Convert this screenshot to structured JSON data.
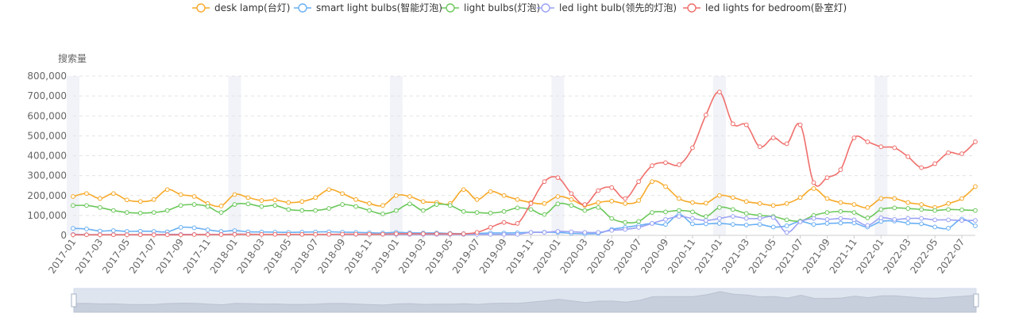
{
  "chart_data": {
    "type": "line",
    "title": "",
    "xlabel": "",
    "ylabel": "搜索量",
    "ylim": [
      0,
      800000
    ],
    "yticks": [
      "0",
      "100,000",
      "200,000",
      "300,000",
      "400,000",
      "500,000",
      "600,000",
      "700,000",
      "800,000"
    ],
    "legend_position": "top-center",
    "grid": "horizontal-dashed",
    "x": [
      "2017-01",
      "2017-02",
      "2017-03",
      "2017-04",
      "2017-05",
      "2017-06",
      "2017-07",
      "2017-08",
      "2017-09",
      "2017-10",
      "2017-11",
      "2017-12",
      "2018-01",
      "2018-02",
      "2018-03",
      "2018-04",
      "2018-05",
      "2018-06",
      "2018-07",
      "2018-08",
      "2018-09",
      "2018-10",
      "2018-11",
      "2018-12",
      "2019-01",
      "2019-02",
      "2019-03",
      "2019-04",
      "2019-05",
      "2019-06",
      "2019-07",
      "2019-08",
      "2019-09",
      "2019-10",
      "2019-11",
      "2019-12",
      "2020-01",
      "2020-02",
      "2020-03",
      "2020-04",
      "2020-05",
      "2020-06",
      "2020-07",
      "2020-08",
      "2020-09",
      "2020-10",
      "2020-11",
      "2020-12",
      "2021-01",
      "2021-02",
      "2021-03",
      "2021-04",
      "2021-05",
      "2021-06",
      "2021-07",
      "2021-08",
      "2021-09",
      "2021-10",
      "2021-11",
      "2021-12",
      "2022-01",
      "2022-02",
      "2022-03",
      "2022-04",
      "2022-05",
      "2022-06",
      "2022-07",
      "2022-08"
    ],
    "x_tick_labels": [
      "2017-01",
      "2017-03",
      "2017-05",
      "2017-07",
      "2017-09",
      "2017-11",
      "2018-01",
      "2018-03",
      "2018-05",
      "2018-07",
      "2018-09",
      "2018-11",
      "2019-01",
      "2019-03",
      "2019-05",
      "2019-07",
      "2019-09",
      "2019-11",
      "2020-01",
      "2020-03",
      "2020-05",
      "2020-07",
      "2020-09",
      "2020-11",
      "2021-01",
      "2021-03",
      "2021-05",
      "2021-07",
      "2021-09",
      "2021-11",
      "2022-01",
      "2022-03",
      "2022-05",
      "2022-07"
    ],
    "series": [
      {
        "name": "desk lamp(台灯)",
        "color": "#f7a928",
        "values": [
          195000,
          210000,
          185000,
          210000,
          178000,
          170000,
          180000,
          230000,
          205000,
          195000,
          160000,
          148000,
          205000,
          190000,
          175000,
          178000,
          165000,
          170000,
          190000,
          230000,
          210000,
          180000,
          160000,
          150000,
          200000,
          195000,
          170000,
          165000,
          160000,
          230000,
          180000,
          220000,
          200000,
          180000,
          165000,
          160000,
          195000,
          180000,
          150000,
          165000,
          172000,
          160000,
          175000,
          270000,
          245000,
          185000,
          165000,
          162000,
          200000,
          190000,
          170000,
          160000,
          150000,
          160000,
          190000,
          235000,
          185000,
          165000,
          155000,
          140000,
          185000,
          185000,
          165000,
          155000,
          140000,
          160000,
          185000,
          245000
        ]
      },
      {
        "name": "smart light bulbs(智能灯泡)",
        "color": "#6ab0f3",
        "values": [
          35000,
          32000,
          22000,
          24000,
          20000,
          21000,
          20000,
          18000,
          40000,
          38000,
          28000,
          20000,
          24000,
          18000,
          17000,
          16000,
          15000,
          16000,
          17000,
          18000,
          16000,
          15000,
          13000,
          12000,
          15000,
          13000,
          12000,
          12000,
          10000,
          9000,
          10000,
          12000,
          12000,
          13000,
          15000,
          16000,
          15000,
          10000,
          8000,
          10000,
          30000,
          40000,
          50000,
          60000,
          55000,
          105000,
          58000,
          58000,
          60000,
          55000,
          52000,
          55000,
          42000,
          48000,
          70000,
          55000,
          60000,
          62000,
          62000,
          42000,
          70000,
          72000,
          62000,
          58000,
          42000,
          36000,
          82000,
          48000
        ]
      },
      {
        "name": "light bulbs(灯泡)",
        "color": "#6cc85c",
        "values": [
          150000,
          150000,
          140000,
          125000,
          115000,
          112000,
          115000,
          125000,
          150000,
          155000,
          145000,
          115000,
          155000,
          158000,
          145000,
          150000,
          130000,
          125000,
          125000,
          135000,
          155000,
          145000,
          125000,
          108000,
          125000,
          158000,
          125000,
          155000,
          150000,
          120000,
          115000,
          112000,
          120000,
          138000,
          130000,
          105000,
          158000,
          150000,
          125000,
          140000,
          85000,
          65000,
          70000,
          115000,
          118000,
          125000,
          118000,
          95000,
          140000,
          130000,
          110000,
          100000,
          95000,
          78000,
          72000,
          100000,
          115000,
          120000,
          115000,
          88000,
          130000,
          138000,
          135000,
          130000,
          125000,
          130000,
          128000,
          125000
        ]
      },
      {
        "name": "led light bulb(领先的灯泡)",
        "color": "#9aa2f4",
        "values": [
          5000,
          4000,
          4000,
          4000,
          4000,
          4000,
          4000,
          5000,
          5000,
          5000,
          5000,
          5000,
          6000,
          6000,
          5000,
          5000,
          5000,
          5000,
          5000,
          5000,
          5000,
          5000,
          5000,
          5000,
          5000,
          5000,
          5000,
          5000,
          5000,
          5000,
          5000,
          5000,
          5000,
          5000,
          15000,
          15000,
          20000,
          18000,
          15000,
          15000,
          25000,
          30000,
          40000,
          60000,
          80000,
          95000,
          85000,
          75000,
          85000,
          95000,
          85000,
          85000,
          90000,
          15000,
          68000,
          85000,
          80000,
          85000,
          78000,
          50000,
          88000,
          80000,
          85000,
          85000,
          78000,
          78000,
          75000,
          75000
        ]
      },
      {
        "name": "led lights for bedroom(卧室灯)",
        "color": "#ef6f6c",
        "values": [
          3000,
          3000,
          3000,
          3000,
          3000,
          3000,
          3000,
          3000,
          3000,
          4000,
          4000,
          4000,
          5000,
          5000,
          5000,
          5000,
          5000,
          5000,
          5000,
          5000,
          6000,
          6000,
          6000,
          6000,
          8000,
          8000,
          8000,
          8000,
          8000,
          8000,
          15000,
          40000,
          65000,
          60000,
          160000,
          270000,
          290000,
          210000,
          155000,
          225000,
          240000,
          185000,
          270000,
          350000,
          365000,
          355000,
          440000,
          605000,
          720000,
          560000,
          555000,
          445000,
          490000,
          460000,
          555000,
          265000,
          290000,
          330000,
          490000,
          470000,
          445000,
          440000,
          395000,
          340000,
          360000,
          415000,
          410000,
          470000
        ]
      }
    ]
  }
}
